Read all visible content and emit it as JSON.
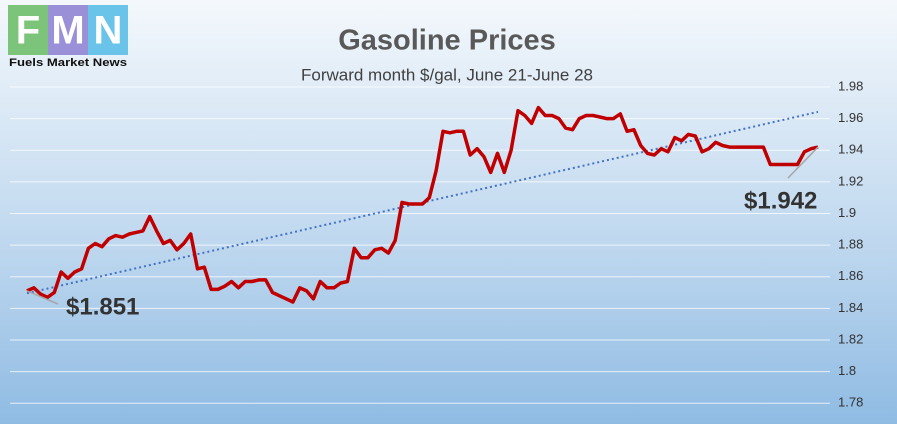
{
  "logo": {
    "letters": [
      "F",
      "M",
      "N"
    ],
    "tagline": "Fuels Market News"
  },
  "chart_data": {
    "type": "line",
    "title": "Gasoline Prices",
    "subtitle": "Forward month $/gal, June 21-June 28",
    "series": [
      {
        "color": "#c00000",
        "values": [
          1.851,
          1.853,
          1.849,
          1.847,
          1.85,
          1.863,
          1.859,
          1.863,
          1.865,
          1.878,
          1.881,
          1.879,
          1.884,
          1.886,
          1.885,
          1.887,
          1.888,
          1.889,
          1.898,
          1.889,
          1.881,
          1.883,
          1.877,
          1.881,
          1.887,
          1.865,
          1.866,
          1.852,
          1.852,
          1.854,
          1.857,
          1.853,
          1.857,
          1.857,
          1.858,
          1.858,
          1.85,
          1.848,
          1.846,
          1.844,
          1.853,
          1.851,
          1.846,
          1.857,
          1.853,
          1.853,
          1.856,
          1.857,
          1.878,
          1.872,
          1.872,
          1.877,
          1.878,
          1.875,
          1.883,
          1.907,
          1.906,
          1.906,
          1.906,
          1.91,
          1.927,
          1.952,
          1.951,
          1.952,
          1.952,
          1.937,
          1.941,
          1.936,
          1.926,
          1.938,
          1.926,
          1.94,
          1.965,
          1.962,
          1.957,
          1.967,
          1.962,
          1.962,
          1.96,
          1.954,
          1.953,
          1.96,
          1.962,
          1.962,
          1.961,
          1.96,
          1.96,
          1.963,
          1.952,
          1.953,
          1.943,
          1.938,
          1.937,
          1.941,
          1.939,
          1.948,
          1.946,
          1.95,
          1.949,
          1.939,
          1.941,
          1.945,
          1.943,
          1.942,
          1.942,
          1.942,
          1.942,
          1.942,
          1.942,
          1.931,
          1.931,
          1.931,
          1.931,
          1.931,
          1.939,
          1.941,
          1.942
        ]
      }
    ],
    "trendline": {
      "color": "#4472c4",
      "style": "dotted"
    },
    "annotations": [
      "$1.851",
      "$1.942"
    ],
    "ylim": [
      1.77,
      1.98
    ],
    "yticks": [
      1.78,
      1.8,
      1.82,
      1.84,
      1.86,
      1.88,
      1.9,
      1.92,
      1.94,
      1.96,
      1.98
    ],
    "grid": true
  }
}
